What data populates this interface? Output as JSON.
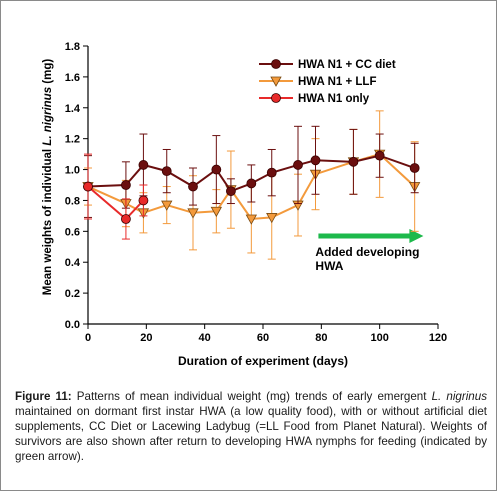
{
  "chart_data": {
    "type": "line",
    "title": "",
    "xlabel": "Duration of experiment (days)",
    "ylabel_prefix": "Mean weights of individual ",
    "ylabel_species": "L. nigrinus",
    "ylabel_suffix": " (mg)",
    "xlim": [
      0,
      120
    ],
    "ylim": [
      0,
      1.8
    ],
    "xticks": [
      0,
      20,
      40,
      60,
      80,
      100,
      120
    ],
    "yticks": [
      0,
      0.2,
      0.4,
      0.6,
      0.8,
      1.0,
      1.2,
      1.4,
      1.6,
      1.8
    ],
    "ytick_labels": [
      "0.0",
      "0.2",
      "0.4",
      "0.6",
      "0.8",
      "1.0",
      "1.2",
      "1.4",
      "1.6",
      "1.8"
    ],
    "grid": false,
    "legend_position": "top-right",
    "series": [
      {
        "name": "HWA N1 + CC diet",
        "color": "#6b0f0f",
        "marker": "circle",
        "x": [
          0,
          13,
          19,
          27,
          36,
          44,
          49,
          56,
          63,
          72,
          78,
          91,
          100,
          112
        ],
        "y": [
          0.89,
          0.9,
          1.03,
          0.99,
          0.89,
          1.0,
          0.86,
          0.91,
          0.98,
          1.03,
          1.06,
          1.05,
          1.09,
          1.01
        ],
        "err": [
          0.2,
          0.15,
          0.2,
          0.14,
          0.12,
          0.22,
          0.08,
          0.12,
          0.15,
          0.25,
          0.22,
          0.21,
          0.14,
          0.16
        ]
      },
      {
        "name": "HWA N1 + LLF",
        "color": "#f39a3c",
        "marker": "triangle-down",
        "x": [
          0,
          13,
          19,
          27,
          36,
          44,
          49,
          56,
          63,
          72,
          78,
          91,
          100,
          112
        ],
        "y": [
          0.89,
          0.78,
          0.72,
          0.77,
          0.72,
          0.73,
          0.87,
          0.68,
          0.69,
          0.77,
          0.97,
          1.05,
          1.1,
          0.89
        ],
        "err": [
          0.12,
          0.15,
          0.13,
          0.12,
          0.24,
          0.14,
          0.25,
          0.22,
          0.27,
          0.2,
          0.23,
          0.21,
          0.28,
          0.29
        ]
      },
      {
        "name": "HWA N1 only",
        "color": "#e82a2a",
        "marker": "circle",
        "x": [
          0,
          13,
          19
        ],
        "y": [
          0.89,
          0.68,
          0.8
        ],
        "err": [
          0.21,
          0.13,
          0.1
        ]
      }
    ],
    "annotation": {
      "line1": "Added developing",
      "line2": "HWA",
      "arrow_from_x": 79,
      "arrow_to_x": 115,
      "arrow_y": 0.57,
      "arrow_color": "#1db94b"
    }
  },
  "caption": {
    "label": "Figure 11:",
    "part1": " Patterns of mean individual weight (mg) trends of early emergent ",
    "species": "L. nigrinus",
    "part2": " maintained on dormant first instar HWA (a low quality food), with or without artificial diet supplements, CC Diet or Lacewing Ladybug (=LL Food from Planet Natural). Weights of survivors are also shown after return to developing HWA nymphs for feeding (indicated by green arrow)."
  }
}
